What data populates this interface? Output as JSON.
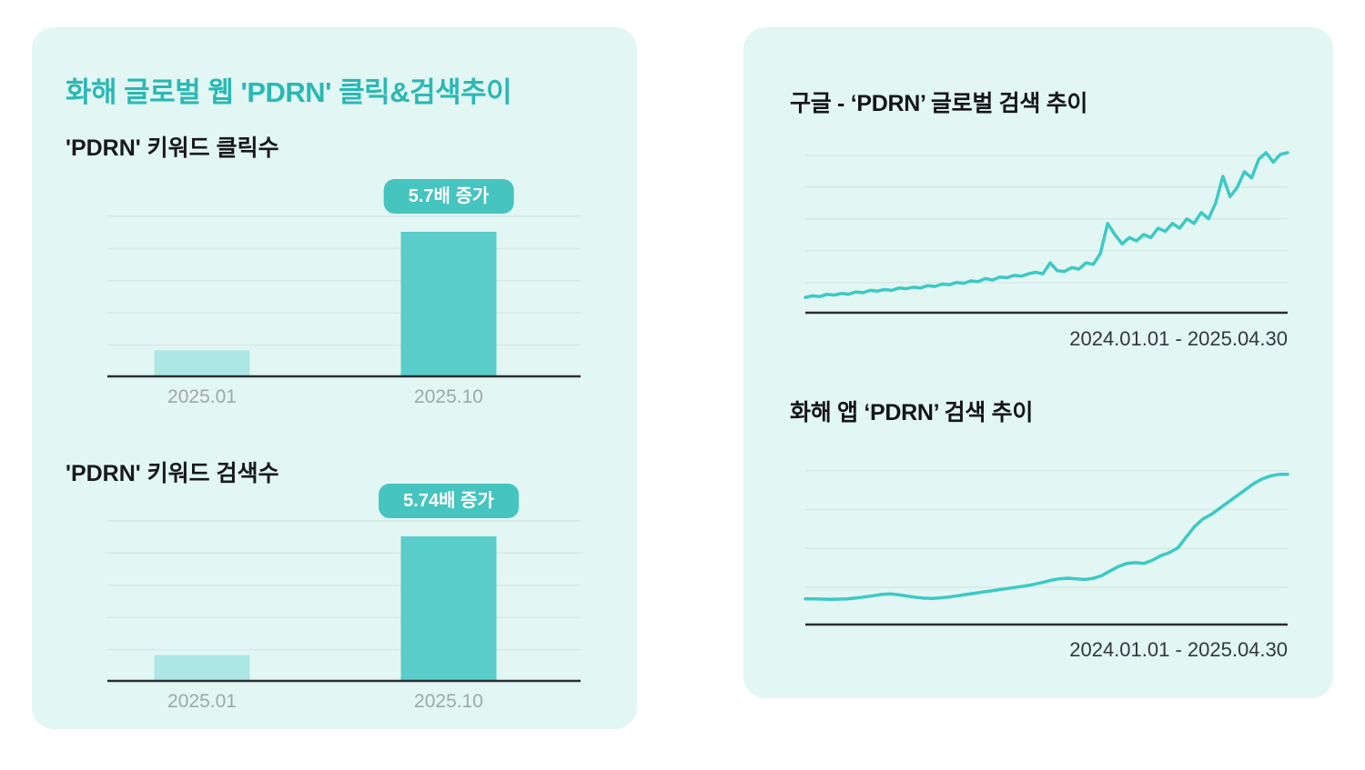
{
  "left_panel": {
    "title": "화해 글로벌 웹 'PDRN' 클릭&검색추이"
  },
  "colors": {
    "panel_bg": "#E2F6F4",
    "accent": "#2BB8B3",
    "bar_light": "#ACE7E5",
    "bar_dark": "#5ACDC9",
    "badge_bg": "#46C4BF",
    "line": "#3DC9C4",
    "grid": "#D8E9E7",
    "axis": "#2B2E30",
    "label_gray": "#9FA8A7"
  },
  "chart_data": [
    {
      "type": "bar",
      "title": "'PDRN' 키워드 클릭수",
      "categories": [
        "2025.01",
        "2025.10"
      ],
      "values": [
        1,
        5.7
      ],
      "badge": "5.7배 증가",
      "badge_on": "2025.10",
      "ylim": [
        0,
        6.3
      ],
      "grid": true,
      "gridlines": 5
    },
    {
      "type": "bar",
      "title": "'PDRN' 키워드 검색수",
      "categories": [
        "2025.01",
        "2025.10"
      ],
      "values": [
        1,
        5.74
      ],
      "badge": "5.74배 증가",
      "badge_on": "2025.10",
      "ylim": [
        0,
        6.3
      ],
      "grid": true,
      "gridlines": 5
    },
    {
      "type": "line",
      "title": "구글 - ‘PDRN’ 글로벌 검색 추이",
      "caption": "2024.01.01 - 2025.04.30",
      "x_range": [
        "2024.01.01",
        "2025.04.30"
      ],
      "ylim": [
        0,
        100
      ],
      "grid": true,
      "gridlines": 5,
      "values": [
        8,
        9,
        8.5,
        10,
        9.5,
        10.5,
        10,
        11.5,
        11,
        12.5,
        12,
        13,
        12.5,
        14,
        13.5,
        14.5,
        14,
        15.5,
        15,
        16.5,
        16,
        17.5,
        17,
        18.5,
        18,
        20,
        19,
        21,
        20.5,
        22,
        21.5,
        23,
        24,
        23,
        30,
        25,
        24.5,
        27,
        26,
        30,
        29,
        36,
        55,
        48,
        42,
        46,
        44,
        48,
        46,
        52,
        50,
        55,
        52,
        58,
        55,
        62,
        58,
        68,
        85,
        72,
        78,
        88,
        84,
        96,
        100,
        94,
        99,
        100
      ]
    },
    {
      "type": "line",
      "title": "화해 앱 ‘PDRN’ 검색 추이",
      "caption": "2024.01.01 - 2025.04.30",
      "x_range": [
        "2024.01.01",
        "2025.04.30"
      ],
      "ylim": [
        0,
        100
      ],
      "grid": true,
      "gridlines": 4,
      "values": [
        15,
        15,
        14.8,
        14.6,
        14.8,
        15,
        15.5,
        16.2,
        17,
        17.8,
        18.2,
        17.6,
        16.8,
        16,
        15.4,
        15.2,
        15.6,
        16.2,
        17,
        17.8,
        18.6,
        19.4,
        20.2,
        21,
        21.8,
        22.6,
        23.4,
        24.4,
        25.6,
        27,
        28,
        28.4,
        28,
        27.6,
        28.2,
        30,
        33,
        36,
        38,
        38.5,
        38,
        40,
        43,
        45,
        48,
        55,
        62,
        67,
        70,
        74,
        78,
        82,
        86,
        90,
        93,
        95,
        96,
        96
      ]
    }
  ]
}
